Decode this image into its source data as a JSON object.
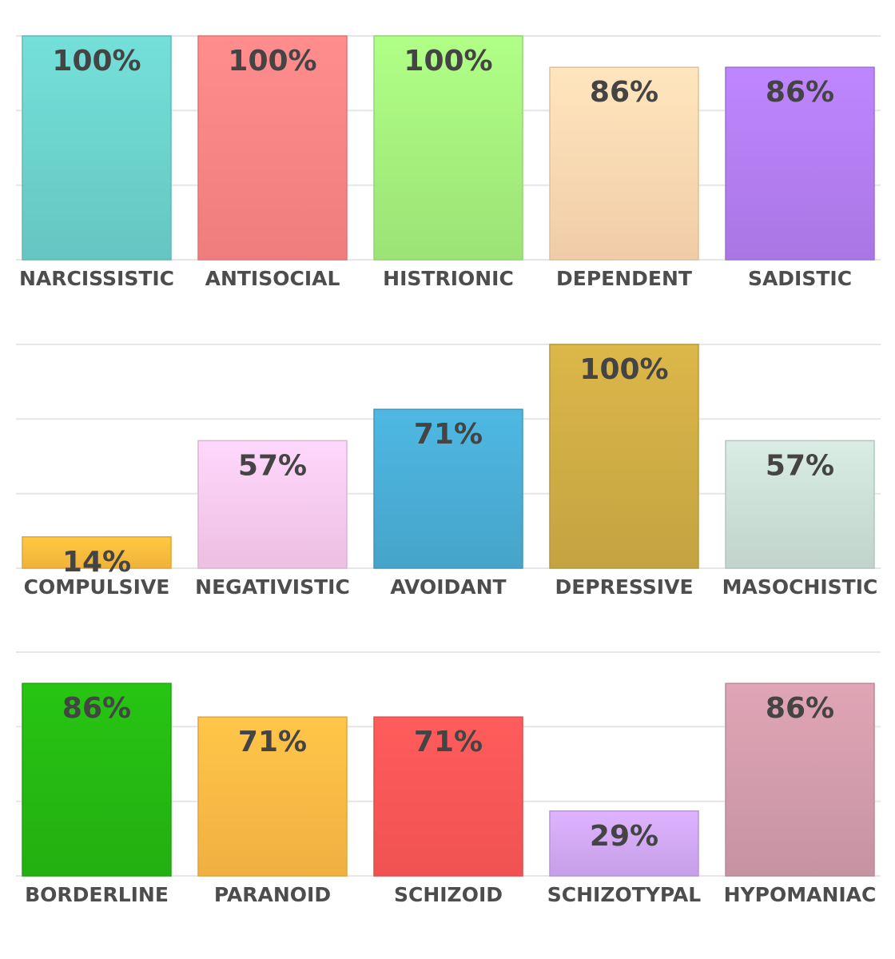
{
  "chart_data": [
    {
      "type": "bar",
      "categories": [
        "NARCISSISTIC",
        "ANTISOCIAL",
        "HISTRIONIC",
        "DEPENDENT",
        "SADISTIC"
      ],
      "values": [
        100,
        100,
        100,
        86,
        86
      ],
      "value_labels": [
        "100%",
        "100%",
        "100%",
        "86%",
        "86%"
      ],
      "colors": [
        "#6dd3cd",
        "#ff8585",
        "#a6f27e",
        "#ffd9b2",
        "#b47ef3"
      ],
      "ylim": [
        0,
        100
      ],
      "yticks": [
        0,
        33.3,
        66.7,
        100
      ],
      "grid": true
    },
    {
      "type": "bar",
      "categories": [
        "COMPULSIVE",
        "NEGATIVISTIC",
        "AVOIDANT",
        "DEPRESSIVE",
        "MASOCHISTIC"
      ],
      "values": [
        14,
        57,
        71,
        100,
        57
      ],
      "value_labels": [
        "14%",
        "57%",
        "71%",
        "100%",
        "57%"
      ],
      "colors": [
        "#ffbd3d",
        "#fccbef",
        "#4aaed6",
        "#d0ad45",
        "#cde0d8"
      ],
      "ylim": [
        0,
        100
      ],
      "yticks": [
        0,
        33.3,
        66.7,
        100
      ],
      "grid": true
    },
    {
      "type": "bar",
      "categories": [
        "BORDERLINE",
        "PARANOID",
        "SCHIZOID",
        "SCHIZOTYPAL",
        "HYPOMANIAC"
      ],
      "values": [
        86,
        71,
        71,
        29,
        86
      ],
      "value_labels": [
        "86%",
        "71%",
        "71%",
        "29%",
        "86%"
      ],
      "colors": [
        "#25ba12",
        "#ffbb45",
        "#ff5757",
        "#d2a9f6",
        "#d39cac"
      ],
      "ylim": [
        0,
        100
      ],
      "yticks": [
        0,
        33.3,
        66.7,
        100
      ],
      "grid": true
    }
  ]
}
